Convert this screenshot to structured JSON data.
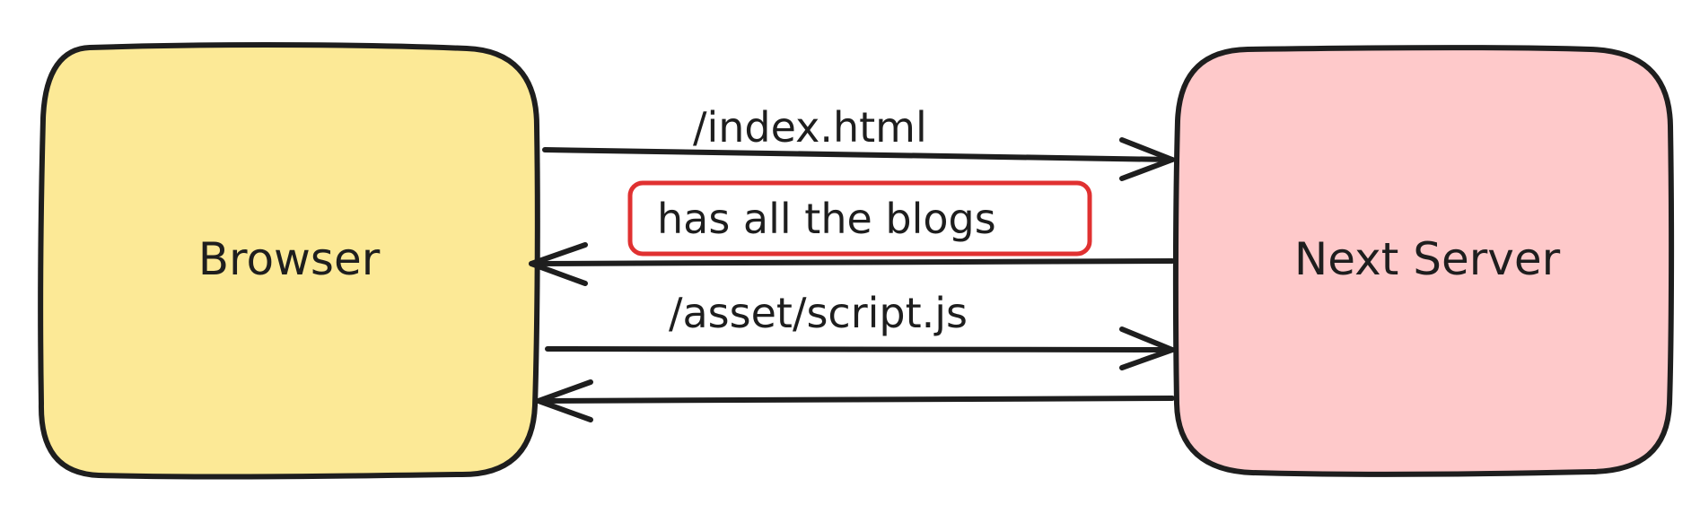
{
  "nodes": {
    "browser": {
      "label": "Browser",
      "fill": "#fce996",
      "stroke": "#1e1e1e"
    },
    "next_server": {
      "label": "Next Server",
      "fill": "#fec9ca",
      "stroke": "#1e1e1e"
    }
  },
  "edges": [
    {
      "from": "Browser",
      "to": "Next Server",
      "label": "/index.html"
    },
    {
      "from": "Next Server",
      "to": "Browser",
      "label": "has all the blogs",
      "highlight_color": "#e03131"
    },
    {
      "from": "Browser",
      "to": "Next Server",
      "label": "/asset/script.js"
    },
    {
      "from": "Next Server",
      "to": "Browser",
      "label": ""
    }
  ]
}
